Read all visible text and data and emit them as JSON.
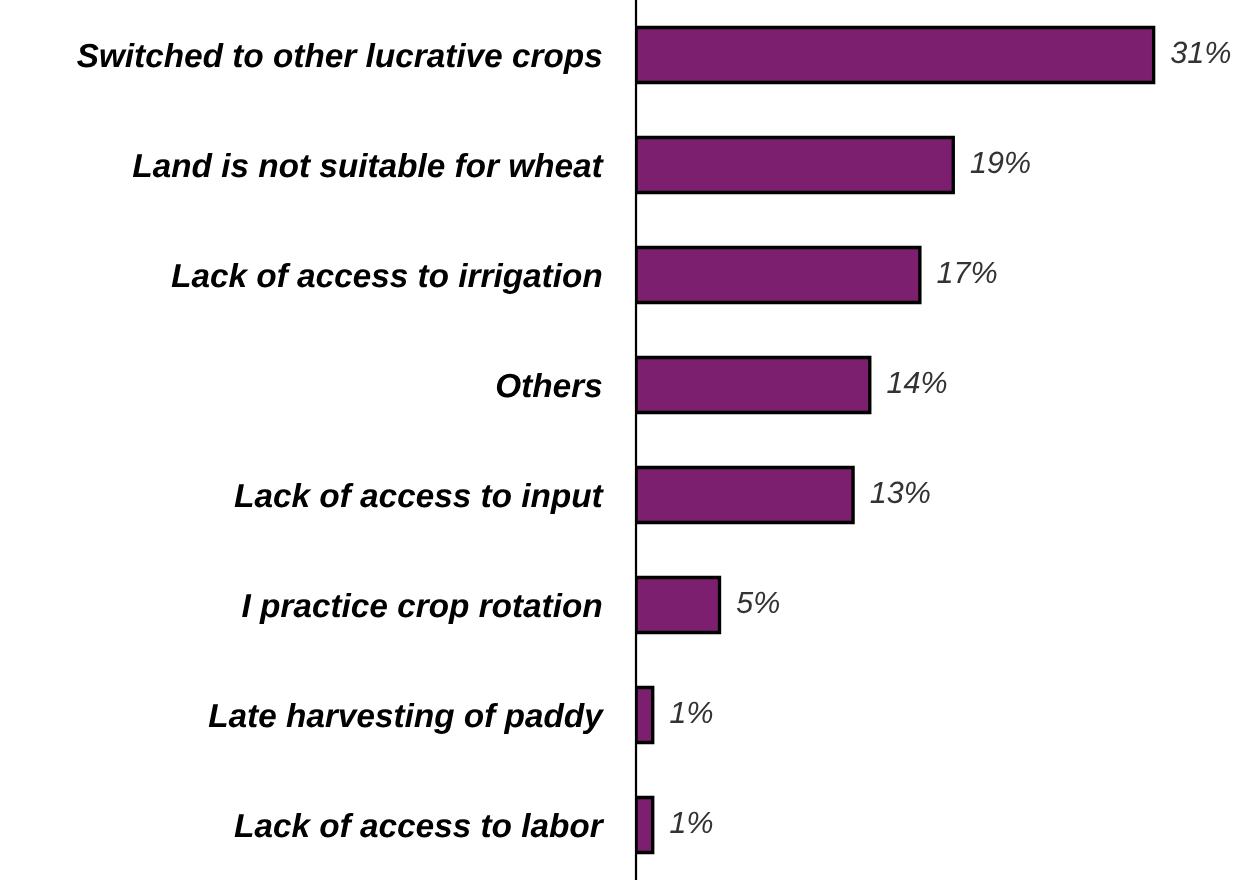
{
  "chart_data": {
    "type": "bar",
    "orientation": "horizontal",
    "categories": [
      "Switched to other lucrative crops",
      "Land is not suitable for wheat",
      "Lack of access to irrigation",
      "Others",
      "Lack of access to input",
      "I practice crop rotation",
      "Late harvesting of paddy",
      "Lack of access to labor"
    ],
    "values": [
      31,
      19,
      17,
      14,
      13,
      5,
      1,
      1
    ],
    "value_labels": [
      "31%",
      "19%",
      "17%",
      "14%",
      "13%",
      "5%",
      "1%",
      "1%"
    ],
    "color": "#7b1f6e",
    "tick_labels": "y",
    "grid": false,
    "legend": false
  }
}
